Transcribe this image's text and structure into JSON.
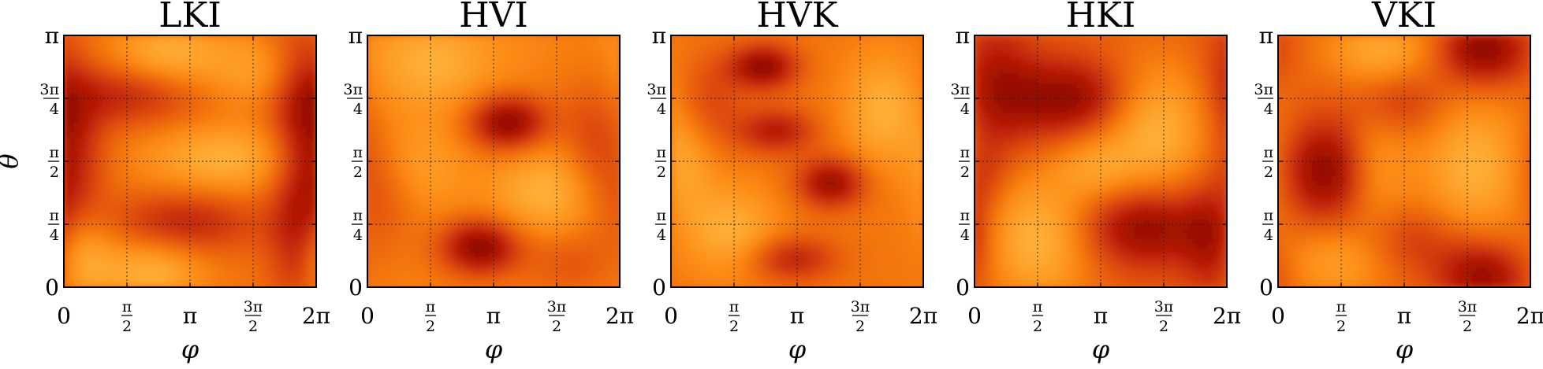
{
  "chart_data": [
    {
      "type": "heatmap",
      "title": "LKI",
      "xlabel": "φ",
      "ylabel": "θ",
      "xlim": [
        0,
        6.2832
      ],
      "ylim": [
        0,
        3.1416
      ],
      "xticks": [
        "0",
        "π/2",
        "π",
        "3π/2",
        "2π"
      ],
      "yticks": [
        "0",
        "π/4",
        "π/2",
        "3π/4",
        "π"
      ],
      "grid": true,
      "blobs": [
        {
          "phi": 1.6,
          "theta": 2.4,
          "level": 0.95,
          "width": 1.2,
          "height": 0.28
        },
        {
          "phi": 0.2,
          "theta": 1.6,
          "level": 0.9,
          "width": 0.6,
          "height": 0.7
        },
        {
          "phi": 3.0,
          "theta": 0.8,
          "level": 1.0,
          "width": 1.3,
          "height": 0.28
        },
        {
          "phi": 5.9,
          "theta": 2.2,
          "level": 0.9,
          "width": 0.6,
          "height": 0.9
        },
        {
          "phi": 5.8,
          "theta": 0.5,
          "level": 0.85,
          "width": 0.5,
          "height": 0.6
        },
        {
          "phi": 0.4,
          "theta": 0.4,
          "level": -0.9,
          "width": 0.6,
          "height": 0.4
        },
        {
          "phi": 2.2,
          "theta": 0.2,
          "level": -0.9,
          "width": 0.9,
          "height": 0.3
        },
        {
          "phi": 4.0,
          "theta": 1.6,
          "level": -0.9,
          "width": 1.4,
          "height": 0.3
        },
        {
          "phi": 2.6,
          "theta": 2.9,
          "level": -0.9,
          "width": 1.0,
          "height": 0.3
        },
        {
          "phi": 4.8,
          "theta": 2.7,
          "level": -0.6,
          "width": 0.8,
          "height": 0.3
        }
      ]
    },
    {
      "type": "heatmap",
      "title": "HVI",
      "xlabel": "φ",
      "ylabel": "",
      "xlim": [
        0,
        6.2832
      ],
      "ylim": [
        0,
        3.1416
      ],
      "xticks": [
        "0",
        "π/2",
        "π",
        "3π/2",
        "2π"
      ],
      "yticks": [
        "0",
        "π/4",
        "π/2",
        "3π/4",
        "π"
      ],
      "grid": true,
      "blobs": [
        {
          "phi": 3.5,
          "theta": 2.05,
          "level": 1.0,
          "width": 0.7,
          "height": 0.25
        },
        {
          "phi": 2.8,
          "theta": 0.5,
          "level": 1.0,
          "width": 0.7,
          "height": 0.25
        },
        {
          "phi": 0.3,
          "theta": 1.2,
          "level": 0.4,
          "width": 0.7,
          "height": 0.5
        },
        {
          "phi": 5.6,
          "theta": 1.8,
          "level": 0.4,
          "width": 0.6,
          "height": 0.6
        },
        {
          "phi": 5.0,
          "theta": 0.3,
          "level": 0.3,
          "width": 0.8,
          "height": 0.3
        },
        {
          "phi": 4.6,
          "theta": 1.2,
          "level": -0.45,
          "width": 1.0,
          "height": 0.4
        },
        {
          "phi": 1.6,
          "theta": 2.8,
          "level": -0.4,
          "width": 1.1,
          "height": 0.4
        },
        {
          "phi": 1.2,
          "theta": 1.5,
          "level": -0.3,
          "width": 0.8,
          "height": 0.4
        }
      ]
    },
    {
      "type": "heatmap",
      "title": "HVK",
      "xlabel": "φ",
      "ylabel": "",
      "xlim": [
        0,
        6.2832
      ],
      "ylim": [
        0,
        3.1416
      ],
      "xticks": [
        "0",
        "π/2",
        "π",
        "3π/2",
        "2π"
      ],
      "yticks": [
        "0",
        "π/4",
        "π/2",
        "3π/4",
        "π"
      ],
      "grid": true,
      "blobs": [
        {
          "phi": 2.3,
          "theta": 2.75,
          "level": 0.75,
          "width": 0.6,
          "height": 0.2
        },
        {
          "phi": 2.6,
          "theta": 1.95,
          "level": 0.55,
          "width": 0.7,
          "height": 0.2
        },
        {
          "phi": 4.0,
          "theta": 1.3,
          "level": 0.7,
          "width": 0.6,
          "height": 0.22
        },
        {
          "phi": 3.0,
          "theta": 0.35,
          "level": 0.5,
          "width": 0.8,
          "height": 0.2
        },
        {
          "phi": 0.9,
          "theta": 2.3,
          "level": 0.3,
          "width": 0.6,
          "height": 0.4
        },
        {
          "phi": 5.3,
          "theta": 2.2,
          "level": -0.4,
          "width": 0.7,
          "height": 0.5
        },
        {
          "phi": 1.5,
          "theta": 0.7,
          "level": -0.4,
          "width": 0.8,
          "height": 0.4
        },
        {
          "phi": 0.4,
          "theta": 1.6,
          "level": -0.3,
          "width": 0.5,
          "height": 0.5
        }
      ]
    },
    {
      "type": "heatmap",
      "title": "HKI",
      "xlabel": "φ",
      "ylabel": "",
      "xlim": [
        0,
        6.2832
      ],
      "ylim": [
        0,
        3.1416
      ],
      "xticks": [
        "0",
        "π/2",
        "π",
        "3π/2",
        "2π"
      ],
      "yticks": [
        "0",
        "π/4",
        "π/2",
        "3π/4",
        "π"
      ],
      "grid": true,
      "blobs": [
        {
          "phi": 2.4,
          "theta": 2.35,
          "level": 1.0,
          "width": 1.1,
          "height": 0.35
        },
        {
          "phi": 0.5,
          "theta": 2.5,
          "level": 0.7,
          "width": 0.7,
          "height": 0.6
        },
        {
          "phi": 4.2,
          "theta": 0.75,
          "level": 1.0,
          "width": 1.1,
          "height": 0.35
        },
        {
          "phi": 5.9,
          "theta": 0.6,
          "level": 0.7,
          "width": 0.5,
          "height": 0.5
        },
        {
          "phi": 4.5,
          "theta": 2.0,
          "level": -0.9,
          "width": 1.0,
          "height": 0.6
        },
        {
          "phi": 1.6,
          "theta": 0.6,
          "level": -0.9,
          "width": 1.0,
          "height": 0.6
        },
        {
          "phi": 3.0,
          "theta": 1.5,
          "level": -0.5,
          "width": 0.7,
          "height": 0.3
        },
        {
          "phi": 0.3,
          "theta": 1.4,
          "level": 0.3,
          "width": 0.4,
          "height": 0.3
        }
      ]
    },
    {
      "type": "heatmap",
      "title": "VKI",
      "xlabel": "φ",
      "ylabel": "",
      "xlim": [
        0,
        6.2832
      ],
      "ylim": [
        0,
        3.1416
      ],
      "xticks": [
        "0",
        "π/2",
        "π",
        "3π/2",
        "2π"
      ],
      "yticks": [
        "0",
        "π/4",
        "π/2",
        "3π/4",
        "π"
      ],
      "grid": true,
      "blobs": [
        {
          "phi": 1.2,
          "theta": 1.45,
          "level": 1.0,
          "width": 0.8,
          "height": 0.45
        },
        {
          "phi": 5.1,
          "theta": 2.95,
          "level": 1.0,
          "width": 0.8,
          "height": 0.3
        },
        {
          "phi": 5.1,
          "theta": 0.15,
          "level": 0.9,
          "width": 0.8,
          "height": 0.3
        },
        {
          "phi": 3.0,
          "theta": 2.3,
          "level": 0.45,
          "width": 0.8,
          "height": 0.3
        },
        {
          "phi": 3.3,
          "theta": 0.6,
          "level": 0.4,
          "width": 0.9,
          "height": 0.3
        },
        {
          "phi": 2.6,
          "theta": 2.95,
          "level": -0.6,
          "width": 1.0,
          "height": 0.3
        },
        {
          "phi": 4.9,
          "theta": 1.5,
          "level": -0.7,
          "width": 1.0,
          "height": 0.6
        },
        {
          "phi": 2.4,
          "theta": 1.5,
          "level": -0.5,
          "width": 0.6,
          "height": 0.6
        },
        {
          "phi": 1.4,
          "theta": 0.3,
          "level": -0.5,
          "width": 0.9,
          "height": 0.35
        }
      ]
    }
  ]
}
